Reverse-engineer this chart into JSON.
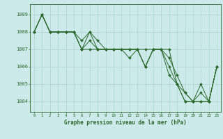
{
  "title": "Graphe pression niveau de la mer (hPa)",
  "bg_color": "#cceaea",
  "grid_color": "#aad4d4",
  "line_color": "#2d6a2d",
  "marker_color": "#2d6a2d",
  "ylim": [
    1003.4,
    1009.6
  ],
  "xlim": [
    -0.5,
    23.5
  ],
  "yticks": [
    1004,
    1005,
    1006,
    1007,
    1008,
    1009
  ],
  "xticks": [
    0,
    1,
    2,
    3,
    4,
    5,
    6,
    7,
    8,
    9,
    10,
    11,
    12,
    13,
    14,
    15,
    16,
    17,
    18,
    19,
    20,
    21,
    22,
    23
  ],
  "series": [
    [
      1008.0,
      1009.0,
      1008.0,
      1008.0,
      1008.0,
      1008.0,
      1007.0,
      1008.0,
      1007.0,
      1007.0,
      1007.0,
      1007.0,
      1007.0,
      1007.0,
      1006.0,
      1007.0,
      1007.0,
      1007.0,
      1005.0,
      1004.0,
      1004.0,
      1005.0,
      1004.0,
      1006.0
    ],
    [
      1008.0,
      1009.0,
      1008.0,
      1008.0,
      1008.0,
      1008.0,
      1007.5,
      1008.0,
      1007.5,
      1007.0,
      1007.0,
      1007.0,
      1007.0,
      1007.0,
      1006.0,
      1007.0,
      1007.0,
      1006.5,
      1005.5,
      1004.5,
      1004.0,
      1004.5,
      1004.0,
      1006.0
    ],
    [
      1008.0,
      1009.0,
      1008.0,
      1008.0,
      1008.0,
      1008.0,
      1007.0,
      1007.5,
      1007.0,
      1007.0,
      1007.0,
      1007.0,
      1007.0,
      1007.0,
      1007.0,
      1007.0,
      1007.0,
      1006.0,
      1005.0,
      1004.5,
      1004.0,
      1004.0,
      1004.0,
      1006.0
    ],
    [
      1008.0,
      1009.0,
      1008.0,
      1008.0,
      1008.0,
      1008.0,
      1007.0,
      1007.0,
      1007.0,
      1007.0,
      1007.0,
      1007.0,
      1006.5,
      1007.0,
      1006.0,
      1007.0,
      1007.0,
      1005.5,
      1005.0,
      1004.0,
      1004.0,
      1004.0,
      1004.0,
      1006.0
    ]
  ]
}
